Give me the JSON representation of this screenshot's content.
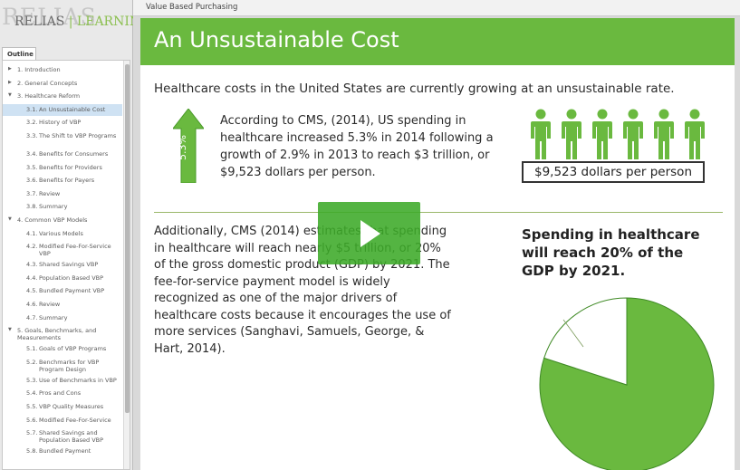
{
  "brand": {
    "ghost": "RELIAS",
    "name_left": "RELIAS",
    "name_right": "LEARNING"
  },
  "topbar": {
    "course_title": "Value Based Purchasing"
  },
  "outline": {
    "tab_label": "Outline",
    "items": [
      {
        "level": 1,
        "arrow": "right",
        "label": "1. Introduction"
      },
      {
        "level": 1,
        "arrow": "right",
        "label": "2. General Concepts"
      },
      {
        "level": 1,
        "arrow": "down",
        "label": "3. Healthcare Reform"
      },
      {
        "level": 2,
        "num": "3.1.",
        "label": "An Unsustainable Cost",
        "active": true
      },
      {
        "level": 2,
        "num": "3.2.",
        "label": "History of VBP"
      },
      {
        "level": 2,
        "num": "3.3.",
        "label": "The Shift to VBP Programs"
      },
      {
        "level": 2,
        "num": "3.4.",
        "label": "Benefits for Consumers"
      },
      {
        "level": 2,
        "num": "3.5.",
        "label": "Benefits for Providers"
      },
      {
        "level": 2,
        "num": "3.6.",
        "label": "Benefits for Payers"
      },
      {
        "level": 2,
        "num": "3.7.",
        "label": "Review"
      },
      {
        "level": 2,
        "num": "3.8.",
        "label": "Summary"
      },
      {
        "level": 1,
        "arrow": "down",
        "label": "4. Common VBP Models"
      },
      {
        "level": 2,
        "num": "4.1.",
        "label": "Various Models"
      },
      {
        "level": 2,
        "num": "4.2.",
        "label": "Modified Fee-For-Service VBP"
      },
      {
        "level": 2,
        "num": "4.3.",
        "label": "Shared Savings VBP"
      },
      {
        "level": 2,
        "num": "4.4.",
        "label": "Population Based VBP"
      },
      {
        "level": 2,
        "num": "4.5.",
        "label": "Bundled Payment VBP"
      },
      {
        "level": 2,
        "num": "4.6.",
        "label": "Review"
      },
      {
        "level": 2,
        "num": "4.7.",
        "label": "Summary"
      },
      {
        "level": 1,
        "arrow": "down",
        "label": "5. Goals, Benchmarks, and Measurements"
      },
      {
        "level": 2,
        "num": "5.1.",
        "label": "Goals of VBP Programs"
      },
      {
        "level": 2,
        "num": "5.2.",
        "label": "Benchmarks for VBP Program Design"
      },
      {
        "level": 2,
        "num": "5.3.",
        "label": "Use of Benchmarks in VBP"
      },
      {
        "level": 2,
        "num": "5.4.",
        "label": "Pros and Cons"
      },
      {
        "level": 2,
        "num": "5.5.",
        "label": "VBP Quality Measures"
      },
      {
        "level": 2,
        "num": "5.6.",
        "label": "Modified Fee-For-Service"
      },
      {
        "level": 2,
        "num": "5.7.",
        "label": "Shared Savings and Population Based VBP"
      },
      {
        "level": 2,
        "num": "5.8.",
        "label": "Bundled Payment"
      }
    ]
  },
  "slide": {
    "title": "An Unsustainable Cost",
    "intro": "Healthcare costs in the United States are currently growing at an unsustainable rate.",
    "arrow_label": "5.3%",
    "cms_paragraph": "According to CMS, (2014), US spending in healthcare increased 5.3% in 2014 following a growth of 2.9% in 2013 to reach $3 trillion, or $9,523 dollars per person.",
    "people_count": 6,
    "per_person": "$9,523 dollars per person",
    "projection_paragraph": "Additionally, CMS (2014) estimates that spending in healthcare will reach nearly $5 trillion, or 20% of the gross domestic product (GDP) by 2021. The fee-for-service payment model is widely recognized as one of the major drivers of healthcare costs because it encourages the use of more services (Sanghavi, Samuels, George, & Hart, 2014).",
    "pie_caption": "Spending in healthcare will reach 20% of the GDP by 2021.",
    "pie_share_fraction": 0.2,
    "colors": {
      "green": "#6ab93f",
      "text": "#2b2b2b"
    }
  },
  "player": {
    "play_icon": "play-icon"
  }
}
